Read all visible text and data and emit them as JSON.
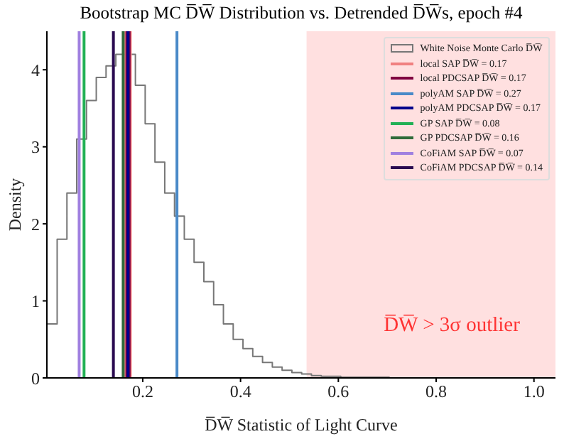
{
  "chart_data": {
    "type": "histogram",
    "title": "Bootstrap MC D̅W̅ Distribution vs. Detrended D̅W̅s, epoch #4",
    "xlabel": "D̅W̅ Statistic of Light Curve",
    "ylabel": "Density",
    "bins": [
      0.005,
      0.025,
      0.045,
      0.065,
      0.085,
      0.105,
      0.125,
      0.145,
      0.165,
      0.185,
      0.205,
      0.225,
      0.245,
      0.265,
      0.285,
      0.305,
      0.325,
      0.345,
      0.365,
      0.385,
      0.405,
      0.425,
      0.445,
      0.465,
      0.485,
      0.505,
      0.525,
      0.545,
      0.565,
      0.585,
      0.605,
      0.625,
      0.645,
      0.665,
      0.685,
      0.705
    ],
    "series": [
      {
        "name": "White Noise Monte Carlo D̅W̅",
        "color": "#777777",
        "values": [
          0.7,
          1.8,
          2.4,
          3.1,
          3.6,
          3.9,
          4.05,
          4.2,
          4.2,
          3.8,
          3.3,
          2.8,
          2.4,
          2.1,
          1.8,
          1.5,
          1.25,
          0.95,
          0.7,
          0.5,
          0.38,
          0.28,
          0.2,
          0.14,
          0.1,
          0.07,
          0.05,
          0.03,
          0.02,
          0.02,
          0.01,
          0.01,
          0.01,
          0.01,
          0.01
        ]
      },
      {
        "type": "line",
        "name": "local SAP D̅W̅ = 0.17",
        "color": "#f08080",
        "x": [
          0.17,
          0.17
        ],
        "values": [
          0,
          4.5
        ]
      },
      {
        "type": "line",
        "name": "local PDCSAP D̅W̅ = 0.17",
        "color": "#800040",
        "x": [
          0.17,
          0.17
        ],
        "values": [
          0,
          4.5
        ]
      },
      {
        "type": "line",
        "name": "polyAM SAP D̅W̅ = 0.27",
        "color": "#4a8ac8",
        "x": [
          0.27,
          0.27
        ],
        "values": [
          0,
          4.5
        ]
      },
      {
        "type": "line",
        "name": "polyAM PDCSAP D̅W̅ = 0.17",
        "color": "#00008b",
        "x": [
          0.17,
          0.17
        ],
        "values": [
          0,
          4.5
        ]
      },
      {
        "type": "line",
        "name": "GP SAP D̅W̅ = 0.08",
        "color": "#22b055",
        "x": [
          0.08,
          0.08
        ],
        "values": [
          0,
          4.5
        ]
      },
      {
        "type": "line",
        "name": "GP PDCSAP D̅W̅ = 0.16",
        "color": "#2f6b3a",
        "x": [
          0.16,
          0.16
        ],
        "values": [
          0,
          4.5
        ]
      },
      {
        "type": "line",
        "name": "CoFiAM SAP D̅W̅ = 0.07",
        "color": "#a080e0",
        "x": [
          0.07,
          0.07
        ],
        "values": [
          0,
          4.5
        ]
      },
      {
        "type": "line",
        "name": "CoFiAM PDCSAP D̅W̅ = 0.14",
        "color": "#2a0a50",
        "x": [
          0.14,
          0.14
        ],
        "values": [
          0,
          4.5
        ]
      }
    ],
    "bands": [
      {
        "axis": "x",
        "from": 0.535,
        "to": 1.044,
        "color": "#ffe0e0"
      }
    ],
    "annotations": [
      "D̅W̅ > 3σ outlier"
    ],
    "xlim": [
      0.004,
      1.044
    ],
    "xticks": [
      {
        "value": 0.2,
        "label": "0.2"
      },
      {
        "value": 0.4,
        "label": "0.4"
      },
      {
        "value": 0.6,
        "label": "0.6"
      },
      {
        "value": 0.8,
        "label": "0.8"
      },
      {
        "value": 1,
        "label": "1.0"
      }
    ],
    "ylim": [
      0,
      4.5
    ],
    "yticks": [
      0,
      1,
      2,
      3,
      4
    ],
    "legend": "top right"
  }
}
